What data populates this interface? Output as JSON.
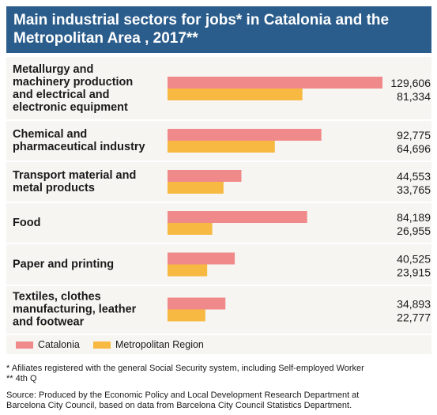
{
  "header": {
    "title": "Main industrial sectors for jobs* in Catalonia and the Metropolitan Area , 2017**"
  },
  "legend": {
    "items": [
      "Catalonia",
      "Metropolitan Region"
    ]
  },
  "footnotes": {
    "note1": "* Afiliates registered with the general Social Security system, including Self-employed Worker",
    "note2": "** 4th Q",
    "source1": "Source: Produced by the Economic Policy and Local Development Research Department at",
    "source2": "Barcelona City Council, based on data from Barcelona City Council Statistics Department."
  },
  "colors": {
    "catalonia": "#f08a8a",
    "metropolitan": "#f7b941",
    "header_bg": "#2b5d8c",
    "panel_bg": "#f6f5f2"
  },
  "chart_data": {
    "type": "bar",
    "orientation": "horizontal",
    "categories": [
      [
        "Metallurgy and",
        "machinery production",
        "and electrical and",
        "electronic equipment"
      ],
      [
        "Chemical and",
        "pharmaceutical industry"
      ],
      [
        "Transport material and",
        "metal products"
      ],
      [
        "Food"
      ],
      [
        "Paper and printing"
      ],
      [
        "Textiles, clothes",
        "manufacturing, leather",
        "and footwear"
      ]
    ],
    "series": [
      {
        "name": "Catalonia",
        "values": [
          129606,
          92775,
          44553,
          84189,
          40525,
          34893
        ],
        "labels": [
          "129,606",
          "92,775",
          "44,553",
          "84,189",
          "40,525",
          "34,893"
        ]
      },
      {
        "name": "Metropolitan Region",
        "values": [
          81334,
          64696,
          33765,
          26955,
          23915,
          22777
        ],
        "labels": [
          "81,334",
          "64,696",
          "33,765",
          "26,955",
          "23,915",
          "22,777"
        ]
      }
    ],
    "xlim": [
      0,
      129606
    ],
    "grid": false,
    "legend_position": "bottom-left"
  }
}
